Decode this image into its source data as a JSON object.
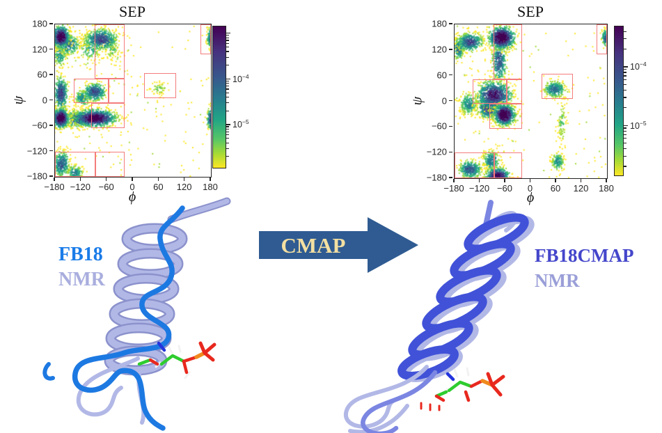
{
  "labels": {
    "left_model": "FB18",
    "left_reference": "NMR",
    "right_model": "FB18CMAP",
    "right_reference": "NMR"
  },
  "arrow": {
    "label": "CMAP"
  },
  "colors": {
    "box": "#f47c7c",
    "arrow_fill": "#2f5b92",
    "arrow_text": "#f3dfa1",
    "model_left": "#1a7ce8",
    "reference_left": "#a9aede",
    "model_right": "#4446cb",
    "reference_right": "#9a9fd8",
    "frame": "#222222",
    "tick_text": "#262626",
    "molecule": {
      "helix_light": "#b2b8e6",
      "helix_light_edge": "#8b92cc",
      "tube_blue": "#1d79e2",
      "helix_blue": "#4152d8",
      "loop_blue": "#7b86e2",
      "carbon": "#2ecc2e",
      "oxygen": "#e8281e",
      "phosphorus": "#f08a1e",
      "nitrogen": "#2233dd",
      "hydrogen": "#f2f2f2"
    },
    "viridis_stops": [
      {
        "frac": 0.0,
        "color": "#440154"
      },
      {
        "frac": 0.18,
        "color": "#46327e"
      },
      {
        "frac": 0.38,
        "color": "#365c8d"
      },
      {
        "frac": 0.52,
        "color": "#277f8e"
      },
      {
        "frac": 0.66,
        "color": "#21a585"
      },
      {
        "frac": 0.8,
        "color": "#58c765"
      },
      {
        "frac": 0.9,
        "color": "#a5db36"
      },
      {
        "frac": 1.0,
        "color": "#fde725"
      }
    ],
    "value_colors": [
      {
        "min": 0.6,
        "color": "#440154"
      },
      {
        "min": 0.45,
        "color": "#46327e"
      },
      {
        "min": 0.33,
        "color": "#365c8d"
      },
      {
        "min": 0.235,
        "color": "#277f8e"
      },
      {
        "min": 0.155,
        "color": "#1fa187"
      },
      {
        "min": 0.09,
        "color": "#4ac16d"
      },
      {
        "min": 0.045,
        "color": "#a0da39"
      },
      {
        "min": 0.0,
        "color": "#fde725"
      }
    ]
  },
  "overlay_boxes": [
    {
      "phi": [
        -88,
        -20
      ],
      "psi": [
        52,
        180
      ]
    },
    {
      "phi": [
        -137,
        -56
      ],
      "psi": [
        -5,
        52
      ]
    },
    {
      "phi": [
        -56,
        -20
      ],
      "psi": [
        -5,
        52
      ]
    },
    {
      "phi": [
        -97,
        -20
      ],
      "psi": [
        -65,
        -5
      ]
    },
    {
      "phi": [
        -180,
        -87
      ],
      "psi": [
        -180,
        -120
      ]
    },
    {
      "phi": [
        -87,
        -20
      ],
      "psi": [
        -180,
        -120
      ]
    },
    {
      "phi": [
        156,
        180
      ],
      "psi": [
        110,
        180
      ]
    },
    {
      "phi": [
        25,
        100
      ],
      "psi": [
        5,
        65
      ]
    }
  ],
  "chart_data": [
    {
      "type": "heatmap",
      "id": "sep-fb18",
      "title": "SEP",
      "xlabel": "ϕ",
      "ylabel": "ψ",
      "xlim": [
        -180,
        180
      ],
      "ylim": [
        -180,
        180
      ],
      "xticks": [
        -180,
        -120,
        -60,
        0,
        60,
        120,
        180
      ],
      "yticks": [
        180,
        120,
        60,
        0,
        -60,
        -120,
        -180
      ],
      "grid": false,
      "colorbar": {
        "scale": "log",
        "labels": [
          {
            "base": "10",
            "exp": "−4",
            "frac": 0.37
          },
          {
            "base": "10",
            "exp": "−5",
            "frac": 0.69
          }
        ]
      },
      "seed": 1337,
      "clusters": [
        {
          "phi": -168,
          "psi": 152,
          "sphi": 10,
          "spsi": 13,
          "weight": 0.88,
          "n": 650
        },
        {
          "phi": -150,
          "psi": 135,
          "sphi": 13,
          "spsi": 12,
          "weight": 0.4,
          "n": 280
        },
        {
          "phi": -170,
          "psi": 110,
          "sphi": 8,
          "spsi": 14,
          "weight": 0.25,
          "n": 160
        },
        {
          "phi": -75,
          "psi": 146,
          "sphi": 19,
          "spsi": 12,
          "weight": 0.52,
          "n": 480
        },
        {
          "phi": -100,
          "psi": 125,
          "sphi": 15,
          "spsi": 16,
          "weight": 0.2,
          "n": 170
        },
        {
          "phi": -50,
          "psi": 128,
          "sphi": 10,
          "spsi": 16,
          "weight": 0.15,
          "n": 100
        },
        {
          "phi": -168,
          "psi": 18,
          "sphi": 8,
          "spsi": 20,
          "weight": 0.55,
          "n": 380
        },
        {
          "phi": -90,
          "psi": 22,
          "sphi": 13,
          "spsi": 11,
          "weight": 0.5,
          "n": 330
        },
        {
          "phi": -118,
          "psi": 8,
          "sphi": 10,
          "spsi": 10,
          "weight": 0.3,
          "n": 160
        },
        {
          "phi": -168,
          "psi": -40,
          "sphi": 9,
          "spsi": 11,
          "weight": 1.0,
          "n": 650
        },
        {
          "phi": -90,
          "psi": -40,
          "sphi": 24,
          "spsi": 10,
          "weight": 0.88,
          "n": 900
        },
        {
          "phi": -132,
          "psi": -42,
          "sphi": 12,
          "spsi": 10,
          "weight": 0.55,
          "n": 260
        },
        {
          "phi": 179,
          "psi": -42,
          "sphi": 5,
          "spsi": 13,
          "weight": 0.55,
          "n": 200
        },
        {
          "phi": 179,
          "psi": 150,
          "sphi": 5,
          "spsi": 12,
          "weight": 0.5,
          "n": 190
        },
        {
          "phi": -166,
          "psi": -148,
          "sphi": 9,
          "spsi": 16,
          "weight": 0.45,
          "n": 320
        },
        {
          "phi": -135,
          "psi": -168,
          "sphi": 10,
          "spsi": 9,
          "weight": 0.3,
          "n": 140
        },
        {
          "phi": 58,
          "psi": 30,
          "sphi": 12,
          "spsi": 9,
          "weight": 0.1,
          "n": 55
        }
      ],
      "scattered_noise": [
        {
          "phi_range": [
            -180,
            180
          ],
          "psi_range": [
            -180,
            180
          ],
          "n": 130
        },
        {
          "phi_range": [
            -180,
            0
          ],
          "psi_range": [
            -180,
            180
          ],
          "n": 90
        }
      ]
    },
    {
      "type": "heatmap",
      "id": "sep-fb18cmap",
      "title": "SEP",
      "xlabel": "ϕ",
      "ylabel": "ψ",
      "xlim": [
        -180,
        180
      ],
      "ylim": [
        -180,
        180
      ],
      "xticks": [
        -180,
        -120,
        -60,
        0,
        60,
        120,
        180
      ],
      "yticks": [
        180,
        120,
        60,
        0,
        -60,
        -120,
        -180
      ],
      "grid": false,
      "colorbar": {
        "scale": "log",
        "labels": [
          {
            "base": "10",
            "exp": "−4",
            "frac": 0.27
          },
          {
            "base": "10",
            "exp": "−5",
            "frac": 0.66
          }
        ]
      },
      "seed": 7331,
      "clusters": [
        {
          "phi": -70,
          "psi": 150,
          "sphi": 15,
          "spsi": 13,
          "weight": 0.95,
          "n": 750
        },
        {
          "phi": -145,
          "psi": 140,
          "sphi": 16,
          "spsi": 11,
          "weight": 0.5,
          "n": 400
        },
        {
          "phi": -172,
          "psi": 125,
          "sphi": 7,
          "spsi": 14,
          "weight": 0.35,
          "n": 190
        },
        {
          "phi": -76,
          "psi": 95,
          "sphi": 9,
          "spsi": 26,
          "weight": 0.45,
          "n": 340
        },
        {
          "phi": -88,
          "psi": 15,
          "sphi": 21,
          "spsi": 17,
          "weight": 0.68,
          "n": 850
        },
        {
          "phi": -64,
          "psi": -30,
          "sphi": 12,
          "spsi": 12,
          "weight": 1.0,
          "n": 750
        },
        {
          "phi": -102,
          "psi": -15,
          "sphi": 13,
          "spsi": 12,
          "weight": 0.55,
          "n": 380
        },
        {
          "phi": -148,
          "psi": -5,
          "sphi": 11,
          "spsi": 14,
          "weight": 0.3,
          "n": 230
        },
        {
          "phi": -80,
          "psi": -172,
          "sphi": 14,
          "spsi": 9,
          "weight": 0.75,
          "n": 430
        },
        {
          "phi": -145,
          "psi": -158,
          "sphi": 14,
          "spsi": 11,
          "weight": 0.45,
          "n": 330
        },
        {
          "phi": -95,
          "psi": -138,
          "sphi": 10,
          "spsi": 12,
          "weight": 0.35,
          "n": 230
        },
        {
          "phi": 55,
          "psi": 30,
          "sphi": 13,
          "spsi": 10,
          "weight": 0.4,
          "n": 270
        },
        {
          "phi": 72,
          "psi": -50,
          "sphi": 6,
          "spsi": 28,
          "weight": 0.12,
          "n": 90
        },
        {
          "phi": 62,
          "psi": -140,
          "sphi": 8,
          "spsi": 11,
          "weight": 0.25,
          "n": 150
        },
        {
          "phi": 176,
          "psi": 150,
          "sphi": 5,
          "spsi": 10,
          "weight": 0.45,
          "n": 140
        }
      ],
      "scattered_noise": [
        {
          "phi_range": [
            -180,
            180
          ],
          "psi_range": [
            -180,
            180
          ],
          "n": 120
        },
        {
          "phi_range": [
            -180,
            -30
          ],
          "psi_range": [
            -180,
            180
          ],
          "n": 60
        }
      ]
    }
  ]
}
